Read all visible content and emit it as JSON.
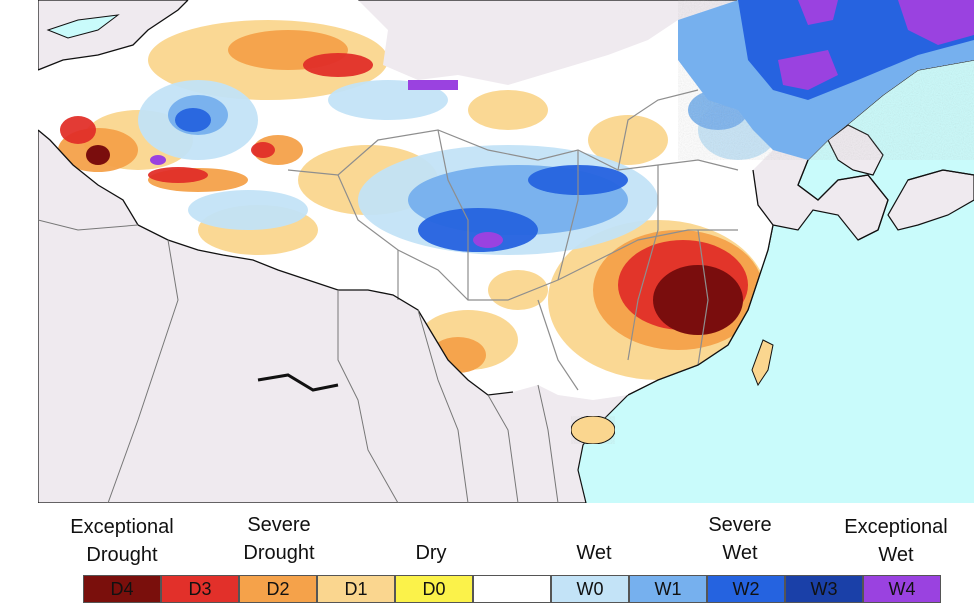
{
  "legend": {
    "labels": {
      "exceptional_drought": [
        "Exceptional",
        "Drought"
      ],
      "severe_drought": [
        "Severe",
        "Drought"
      ],
      "dry": "Dry",
      "wet": "Wet",
      "severe_wet": [
        "Severe",
        "Wet"
      ],
      "exceptional_wet": [
        "Exceptional",
        "Wet"
      ]
    },
    "categories": [
      {
        "code": "D4",
        "color": "#7a0f0c"
      },
      {
        "code": "D3",
        "color": "#e2302a"
      },
      {
        "code": "D2",
        "color": "#f5a24a"
      },
      {
        "code": "D1",
        "color": "#fad68f"
      },
      {
        "code": "D0",
        "color": "#fbf24a"
      },
      {
        "code": "",
        "color": "#ffffff"
      },
      {
        "code": "W0",
        "color": "#c3e3f7"
      },
      {
        "code": "W1",
        "color": "#76b0ee"
      },
      {
        "code": "W2",
        "color": "#2563e0"
      },
      {
        "code": "W3",
        "color": "#1a40a8"
      },
      {
        "code": "W4",
        "color": "#9a42e0"
      }
    ]
  },
  "map_colors": {
    "ocean": "#c9fbfb",
    "land_outside": "#efeaef",
    "border": "#8e8e8e",
    "coast": "#111111"
  }
}
